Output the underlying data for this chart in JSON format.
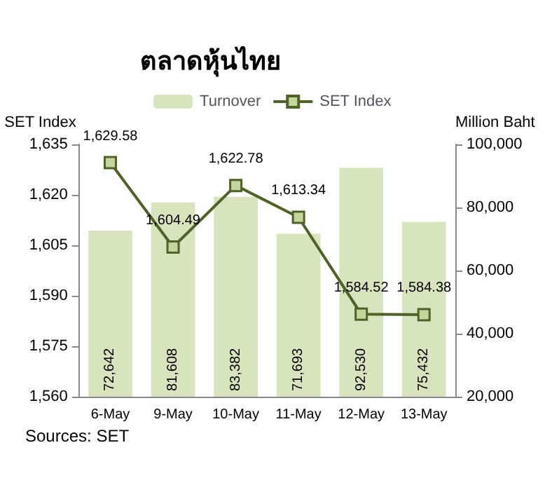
{
  "chart_data": {
    "type": "bar",
    "title": "ตลาดหุ้นไทย",
    "ylabel": "SET Index",
    "y2label": "Million Baht",
    "categories": [
      "6-May",
      "9-May",
      "10-May",
      "11-May",
      "12-May",
      "13-May"
    ],
    "series": [
      {
        "name": "Turnover",
        "axis": "y2",
        "color": "#d7e4bd",
        "values": [
          72642,
          81608,
          83382,
          71693,
          92530,
          75432
        ],
        "value_labels": [
          "72,642",
          "81,608",
          "83,382",
          "71,693",
          "92,530",
          "75,432"
        ]
      },
      {
        "name": "SET Index",
        "type": "line",
        "axis": "y",
        "color": "#4f6228",
        "marker": "square",
        "values": [
          1629.58,
          1604.49,
          1622.78,
          1613.34,
          1584.52,
          1584.38
        ],
        "value_labels": [
          "1,629.58",
          "1,604.49",
          "1,622.78",
          "1,613.34",
          "1,584.52",
          "1,584.38"
        ]
      }
    ],
    "ylim": [
      1560,
      1635
    ],
    "yticks": [
      {
        "value": 1560,
        "label": "1,560"
      },
      {
        "value": 1575,
        "label": "1,575"
      },
      {
        "value": 1590,
        "label": "1,590"
      },
      {
        "value": 1605,
        "label": "1,605"
      },
      {
        "value": 1620,
        "label": "1,620"
      },
      {
        "value": 1635,
        "label": "1,635"
      }
    ],
    "y2lim": [
      20000,
      100000
    ],
    "y2ticks": [
      {
        "value": 20000,
        "label": "20,000"
      },
      {
        "value": 40000,
        "label": "40,000"
      },
      {
        "value": 60000,
        "label": "60,000"
      },
      {
        "value": 80000,
        "label": "80,000"
      },
      {
        "value": 100000,
        "label": "100,000"
      }
    ],
    "grid": false,
    "legend": "top",
    "annotations": [
      "Sources: SET"
    ]
  }
}
